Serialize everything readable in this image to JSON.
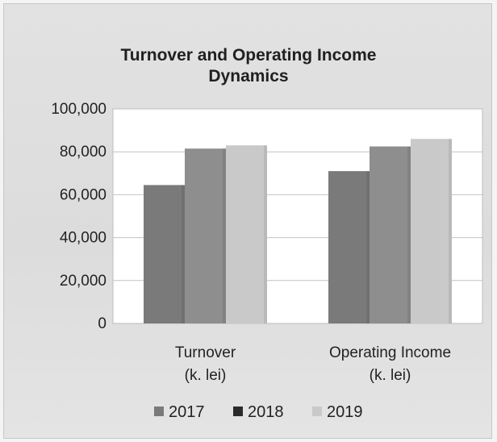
{
  "chart_data": {
    "type": "bar",
    "title_lines": [
      "Turnover and Operating Income",
      "Dynamics"
    ],
    "categories": [
      [
        "Turnover",
        "(k. lei)"
      ],
      [
        "Operating Income",
        "(k. lei)"
      ]
    ],
    "series": [
      {
        "name": "2017",
        "values": [
          64500,
          71000
        ],
        "color": "#7a7a7a"
      },
      {
        "name": "2018",
        "values": [
          81500,
          82500
        ],
        "color": "#8e8e8e"
      },
      {
        "name": "2019",
        "values": [
          83000,
          86000
        ],
        "color": "#c9c9c9"
      }
    ],
    "yticks": [
      "100,000",
      "80,000",
      "60,000",
      "40,000",
      "20,000",
      "0"
    ],
    "ylim": [
      0,
      100000
    ],
    "grid": true,
    "legend_position": "bottom",
    "legend_swatch_colors": [
      "#7a7a7a",
      "#2a2a2a",
      "#c9c9c9"
    ]
  }
}
